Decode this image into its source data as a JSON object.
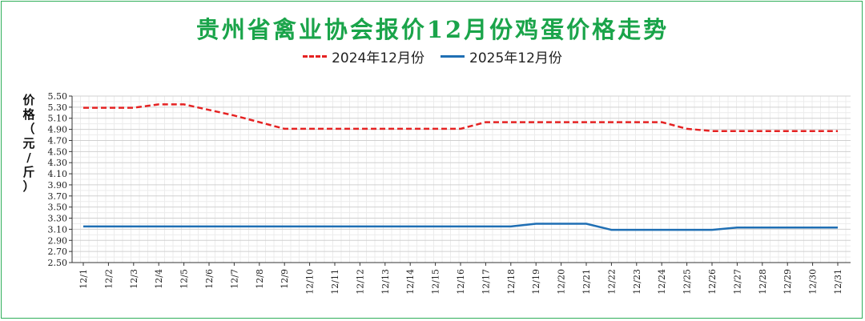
{
  "title": "贵州省禽业协会报价12月份鸡蛋价格走势",
  "legend": {
    "series_2024": "2024年12月份",
    "series_2025": "2025年12月份"
  },
  "ylabel": "价格（元/斤）",
  "colors": {
    "title": "#1aa44a",
    "series_2024": "#e52222",
    "series_2025": "#1f6fb4",
    "frame": "#2fae5a"
  },
  "chart_data": {
    "type": "line",
    "title": "贵州省禽业协会报价12月份鸡蛋价格走势",
    "xlabel": "",
    "ylabel": "价格（元/斤）",
    "ylim": [
      2.5,
      5.5
    ],
    "yticks": [
      "5.50",
      "5.30",
      "5.10",
      "4.90",
      "4.70",
      "4.50",
      "4.30",
      "4.10",
      "3.90",
      "3.70",
      "3.50",
      "3.30",
      "3.10",
      "2.90",
      "2.70",
      "2.50"
    ],
    "grid": true,
    "legend_position": "top-center",
    "categories": [
      "12/1",
      "12/2",
      "12/3",
      "12/4",
      "12/5",
      "12/6",
      "12/7",
      "12/8",
      "12/9",
      "12/10",
      "12/11",
      "12/12",
      "12/13",
      "12/14",
      "12/15",
      "12/16",
      "12/17",
      "12/18",
      "12/19",
      "12/20",
      "12/21",
      "12/22",
      "12/23",
      "12/24",
      "12/25",
      "12/26",
      "12/27",
      "12/28",
      "12/29",
      "12/30",
      "12/31"
    ],
    "series": [
      {
        "name": "2024年12月份",
        "style": "dashed",
        "values": [
          5.29,
          5.29,
          5.29,
          5.35,
          5.35,
          5.25,
          5.15,
          5.03,
          4.91,
          4.91,
          4.91,
          4.91,
          4.91,
          4.91,
          4.91,
          4.91,
          5.03,
          5.03,
          5.03,
          5.03,
          5.03,
          5.03,
          5.03,
          5.03,
          4.91,
          4.87,
          4.87,
          4.87,
          4.87,
          4.87,
          4.87
        ]
      },
      {
        "name": "2025年12月份",
        "style": "solid",
        "values": [
          3.15,
          3.15,
          3.15,
          3.15,
          3.15,
          3.15,
          3.15,
          3.15,
          3.15,
          3.15,
          3.15,
          3.15,
          3.15,
          3.15,
          3.15,
          3.15,
          3.15,
          3.15,
          3.2,
          3.2,
          3.2,
          3.09,
          3.09,
          3.09,
          3.09,
          3.09,
          3.13,
          3.13,
          3.13,
          3.13,
          3.13
        ]
      }
    ]
  }
}
